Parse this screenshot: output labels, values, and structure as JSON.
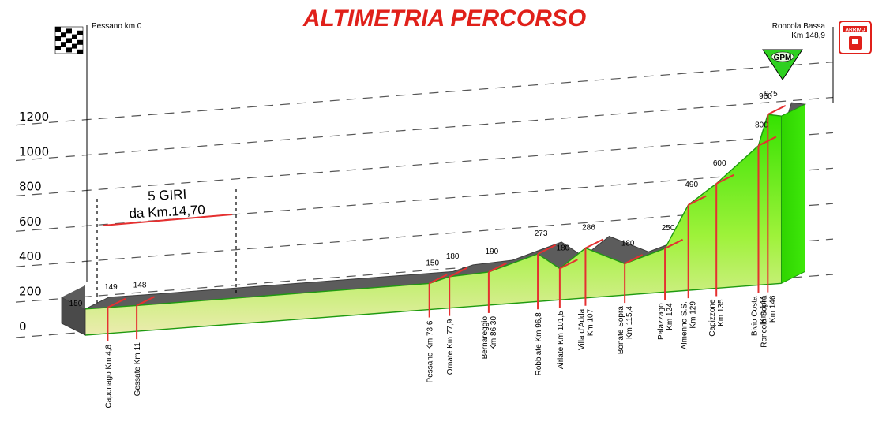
{
  "title": "ALTIMETRIA PERCORSO",
  "start_label": "Pessano km 0",
  "finish_label_1": "Roncola Bassa",
  "finish_label_2": "Km 148,9",
  "gpm_label": "GPM",
  "arrivo_label": "ARRIVO",
  "loop_label_1": "5 GIRI",
  "loop_label_2": "da Km.14,70",
  "colors": {
    "title": "#e0201a",
    "road": "#5a5a5a",
    "fill_top": "#33e000",
    "fill_bottom": "#e4e4a8",
    "marker": "#e53030"
  },
  "chart_data": {
    "type": "area",
    "title": "ALTIMETRIA PERCORSO",
    "xlabel": "",
    "ylabel": "",
    "y_ticks": [
      "1200",
      "1000",
      "800",
      "600",
      "400",
      "200",
      "0"
    ],
    "start_elevation": "150",
    "finish_elevation": "960",
    "points": [
      {
        "km": 4.8,
        "elevation": "149",
        "name": "Caponago Km 4,8",
        "name2": ""
      },
      {
        "km": 11,
        "elevation": "148",
        "name": "Gessate Km 11",
        "name2": ""
      },
      {
        "km": 73.6,
        "elevation": "150",
        "name": "Pessano Km 73,6",
        "name2": ""
      },
      {
        "km": 77.9,
        "elevation": "180",
        "name": "Ornate Km 77,9",
        "name2": ""
      },
      {
        "km": 86.3,
        "elevation": "190",
        "name": "Bernareggio",
        "name2": "Km 86,30"
      },
      {
        "km": 96.8,
        "elevation": "273",
        "name": "Robbiate Km 96,8",
        "name2": ""
      },
      {
        "km": 101.5,
        "elevation": "180",
        "name": "Airlate Km 101,5",
        "name2": ""
      },
      {
        "km": 107,
        "elevation": "286",
        "name": "Villa d'Adda",
        "name2": "Km 107"
      },
      {
        "km": 115.4,
        "elevation": "180",
        "name": "Bonate Sopra",
        "name2": "Km 115,4"
      },
      {
        "km": 124,
        "elevation": "250",
        "name": "Palazzago",
        "name2": "Km 124"
      },
      {
        "km": 129,
        "elevation": "490",
        "name": "Almenno S.S.",
        "name2": "Km 129"
      },
      {
        "km": 135,
        "elevation": "600",
        "name": "Capizzone",
        "name2": "Km 135"
      },
      {
        "km": 144,
        "elevation": "800",
        "name": "Bivio Costa",
        "name2": "Km 144"
      },
      {
        "km": 146,
        "elevation": "975",
        "name": "Roncola Sopra",
        "name2": "Km 146"
      }
    ]
  }
}
